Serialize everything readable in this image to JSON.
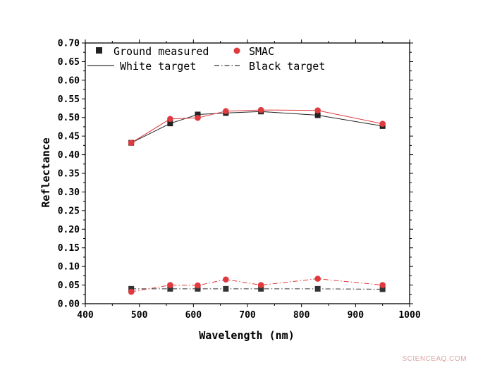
{
  "chart_data": {
    "type": "line",
    "xlabel": "Wavelength (nm)",
    "ylabel": "Reflectance",
    "xlim": [
      400,
      1000
    ],
    "ylim": [
      0.0,
      0.7
    ],
    "xticks": [
      400,
      500,
      600,
      700,
      800,
      900,
      1000
    ],
    "yticks": [
      0.0,
      0.05,
      0.1,
      0.15,
      0.2,
      0.25,
      0.3,
      0.35,
      0.4,
      0.45,
      0.5,
      0.55,
      0.6,
      0.65,
      0.7
    ],
    "xtick_labels": [
      "400",
      "500",
      "600",
      "700",
      "800",
      "900",
      "1000"
    ],
    "ytick_labels": [
      "0.00",
      "0.05",
      "0.10",
      "0.15",
      "0.20",
      "0.25",
      "0.30",
      "0.35",
      "0.40",
      "0.45",
      "0.50",
      "0.55",
      "0.60",
      "0.65",
      "0.70"
    ],
    "x": [
      485,
      557,
      608,
      660,
      725,
      830,
      950
    ],
    "series": [
      {
        "name": "Ground measured",
        "target": "White target",
        "marker": "square",
        "color": "#222222",
        "line": "solid",
        "values": [
          0.432,
          0.484,
          0.508,
          0.512,
          0.516,
          0.506,
          0.477
        ]
      },
      {
        "name": "SMAC",
        "target": "White target",
        "marker": "circle",
        "color": "#e0393e",
        "line": "solid",
        "values": [
          0.432,
          0.496,
          0.499,
          0.517,
          0.52,
          0.519,
          0.483
        ]
      },
      {
        "name": "Ground measured",
        "target": "Black target",
        "marker": "square",
        "color": "#333333",
        "line": "dashdot",
        "values": [
          0.04,
          0.04,
          0.04,
          0.04,
          0.04,
          0.04,
          0.039
        ]
      },
      {
        "name": "SMAC",
        "target": "Black target",
        "marker": "circle",
        "color": "#e0393e",
        "line": "dashdot",
        "values": [
          0.032,
          0.05,
          0.049,
          0.065,
          0.05,
          0.067,
          0.05
        ]
      }
    ],
    "legend": {
      "placement": "top-left",
      "entries": [
        {
          "label": "Ground measured",
          "kind": "marker-square"
        },
        {
          "label": "SMAC",
          "kind": "marker-circle"
        },
        {
          "label": "White target",
          "kind": "line-solid"
        },
        {
          "label": "Black target",
          "kind": "line-dashdot"
        }
      ]
    },
    "grid": false
  },
  "watermark": "SCIENCEAQ.COM"
}
